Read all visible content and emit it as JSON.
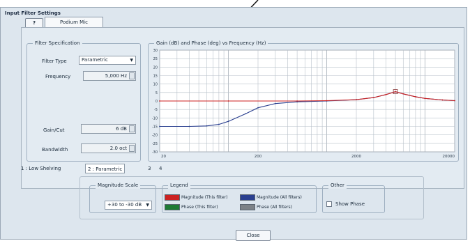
{
  "dialog": {
    "title": "Input Filter Settings",
    "help_label": "?",
    "tab_label": "Podium Mic"
  },
  "filter_spec": {
    "group_label": "Filter Specification",
    "filter_type_label": "Filter Type",
    "filter_type_value": "Parametric",
    "frequency_label": "Frequency",
    "frequency_value": "5,000 Hz",
    "gain_label": "Gain/Cut",
    "gain_value": "6 dB",
    "bandwidth_label": "Bandwidth",
    "bandwidth_value": "2.0 oct"
  },
  "filter_tabs": {
    "tab1": "1 : Low Shelving",
    "tab2": "2 : Parametric",
    "tab3": "3",
    "tab4": "4"
  },
  "magnitude_scale": {
    "group_label": "Magnitude Scale",
    "value": "+30 to -30 dB"
  },
  "legend": {
    "group_label": "Legend",
    "items": [
      {
        "label": "Magnitude (This filter)",
        "color": "#cc2222"
      },
      {
        "label": "Magnitude (All filters)",
        "color": "#2a3f8f"
      },
      {
        "label": "Phase (This filter)",
        "color": "#1e7a34"
      },
      {
        "label": "Phase (All filters)",
        "color": "#7d8287"
      }
    ]
  },
  "other": {
    "group_label": "Other",
    "show_phase_label": "Show Phase",
    "show_phase_checked": false
  },
  "close_label": "Close",
  "chart_data": {
    "type": "line",
    "title": "Gain (dB) and Phase (deg) vs Frequency (Hz)",
    "xlabel": "",
    "ylabel": "",
    "x_scale": "log",
    "xlim": [
      20,
      20000
    ],
    "ylim": [
      -30,
      30
    ],
    "x_ticks": [
      20,
      200,
      2000,
      20000
    ],
    "x_tick_labels": [
      "20",
      "200",
      "2000",
      "20000"
    ],
    "y_ticks": [
      30,
      25,
      20,
      15,
      10,
      5,
      0,
      -5,
      -10,
      -15,
      -20,
      -25,
      -30
    ],
    "y_tick_labels": [
      "30",
      "25",
      "20",
      "15",
      "10",
      "5",
      "0",
      "-5",
      "-10",
      "-15",
      "-20",
      "-25",
      "-30"
    ],
    "grid": true,
    "series": [
      {
        "name": "Magnitude (This filter)",
        "color": "#cc2222",
        "x": [
          20,
          100,
          500,
          1000,
          2000,
          3000,
          4000,
          5000,
          6000,
          8000,
          10000,
          15000,
          20000
        ],
        "y": [
          0,
          0,
          0,
          0.2,
          0.8,
          2.0,
          3.8,
          5.5,
          4.2,
          2.5,
          1.5,
          0.6,
          0.2
        ]
      },
      {
        "name": "Magnitude (All filters)",
        "color": "#2a3f8f",
        "x": [
          20,
          40,
          60,
          80,
          100,
          150,
          200,
          300,
          500,
          1000,
          2000,
          3000,
          4000,
          5000,
          6000,
          8000,
          10000,
          15000,
          20000
        ],
        "y": [
          -15,
          -15,
          -14.7,
          -13.8,
          -12,
          -7.5,
          -4,
          -1.5,
          -0.5,
          0,
          0.8,
          2.0,
          3.8,
          5.5,
          4.2,
          2.5,
          1.5,
          0.6,
          0.2
        ]
      }
    ]
  }
}
